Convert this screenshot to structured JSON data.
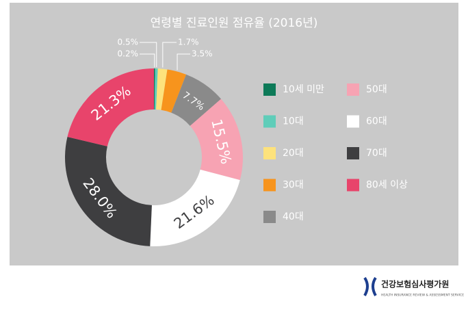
{
  "chart_data": {
    "type": "donut",
    "title": "연령별 진료인원 점유율 (2016년)",
    "categories": [
      "10세 미만",
      "10대",
      "20대",
      "30대",
      "40대",
      "50대",
      "60대",
      "70대",
      "80세 이상"
    ],
    "values": [
      0.2,
      0.5,
      1.7,
      3.5,
      7.7,
      15.5,
      21.6,
      28.0,
      21.3
    ],
    "value_labels": [
      "0.2%",
      "0.5%",
      "1.7%",
      "3.5%",
      "7.7%",
      "15.5%",
      "21.6%",
      "28.0%",
      "21.3%"
    ],
    "colors": [
      "#0d7a58",
      "#5fcdb9",
      "#fde27c",
      "#f7941d",
      "#8a8a8a",
      "#f7a3b3",
      "#ffffff",
      "#3e3e40",
      "#e8446b"
    ],
    "legend": "right"
  },
  "footer": {
    "logo_text": "건강보험심사평가원",
    "logo_subtext": "HEALTH INSURANCE REVIEW & ASSESSMENT SERVICE"
  }
}
